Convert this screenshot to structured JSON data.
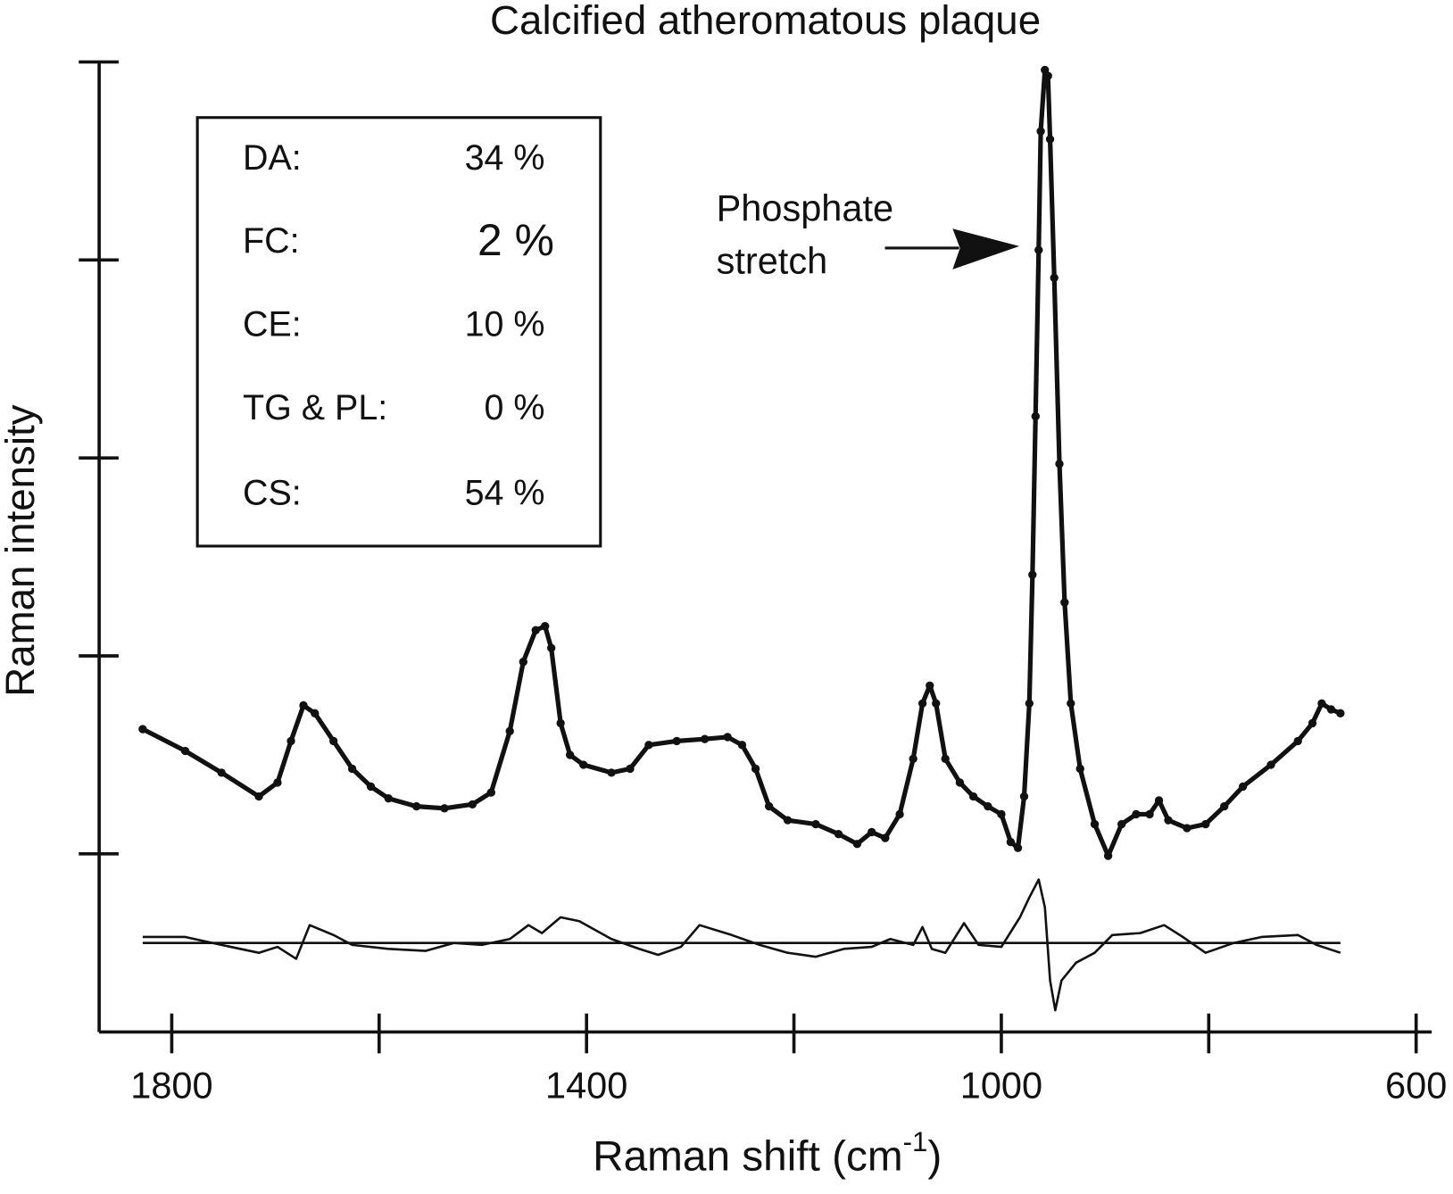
{
  "chart_data": {
    "type": "line",
    "title": "Calcified atheromatous plaque",
    "xlabel": {
      "text": "Raman shift (cm",
      "sup": "-1",
      "end": ")"
    },
    "ylabel": "Raman intensity",
    "xlim": [
      1870,
      585
    ],
    "xticks": [
      1800,
      1400,
      1000,
      600
    ],
    "xminor_ticks": [
      1600,
      1200,
      800
    ],
    "ylim": [
      -0.9,
      4
    ],
    "yticks": [
      0,
      1,
      2,
      3,
      4
    ],
    "ytick_labels": false,
    "grid": false,
    "composition": [
      {
        "label": "DA:",
        "value": "34 %"
      },
      {
        "label": "FC:",
        "value": "2 %"
      },
      {
        "label": "CE:",
        "value": "10 %"
      },
      {
        "label": "TG & PL:",
        "value": "0 %"
      },
      {
        "label": "CS:",
        "value": "54 %"
      }
    ],
    "annotation": [
      "Phosphate",
      "stretch"
    ],
    "series": [
      {
        "color": "#111111",
        "markers": true,
        "x": [
          1828,
          1787,
          1752,
          1716,
          1698,
          1685,
          1673,
          1662,
          1644,
          1626,
          1608,
          1591,
          1564,
          1537,
          1510,
          1492,
          1474,
          1461,
          1449,
          1440,
          1434,
          1425,
          1416,
          1403,
          1376,
          1358,
          1340,
          1313,
          1286,
          1264,
          1250,
          1237,
          1224,
          1206,
          1179,
          1157,
          1139,
          1125,
          1112,
          1098,
          1085,
          1076,
          1069,
          1063,
          1054,
          1040,
          1027,
          1013,
          1000,
          991,
          984,
          978,
          973,
          970,
          967,
          964,
          962,
          958,
          955,
          953,
          949,
          944,
          939,
          933,
          924,
          910,
          897,
          884,
          870,
          857,
          848,
          839,
          821,
          803,
          785,
          767,
          740,
          714,
          700,
          691,
          682,
          673
        ],
        "values": [
          0.63,
          0.52,
          0.41,
          0.29,
          0.36,
          0.57,
          0.75,
          0.71,
          0.57,
          0.43,
          0.34,
          0.28,
          0.24,
          0.23,
          0.25,
          0.31,
          0.62,
          0.97,
          1.13,
          1.15,
          1.04,
          0.66,
          0.5,
          0.45,
          0.41,
          0.43,
          0.55,
          0.57,
          0.58,
          0.59,
          0.55,
          0.43,
          0.24,
          0.17,
          0.15,
          0.1,
          0.05,
          0.11,
          0.08,
          0.2,
          0.48,
          0.76,
          0.85,
          0.76,
          0.48,
          0.36,
          0.29,
          0.24,
          0.2,
          0.06,
          0.03,
          0.29,
          0.76,
          1.41,
          2.21,
          3.05,
          3.65,
          3.96,
          3.93,
          3.61,
          2.91,
          1.97,
          1.27,
          0.76,
          0.43,
          0.15,
          -0.01,
          0.15,
          0.2,
          0.2,
          0.27,
          0.17,
          0.13,
          0.15,
          0.24,
          0.34,
          0.45,
          0.57,
          0.66,
          0.76,
          0.73,
          0.71
        ]
      },
      {
        "color": "#111111",
        "markers": false,
        "x": [
          1828,
          1787,
          1752,
          1716,
          1698,
          1680,
          1667,
          1644,
          1626,
          1591,
          1555,
          1528,
          1501,
          1474,
          1456,
          1443,
          1425,
          1407,
          1376,
          1349,
          1331,
          1309,
          1291,
          1260,
          1233,
          1206,
          1179,
          1152,
          1125,
          1107,
          1085,
          1076,
          1067,
          1054,
          1036,
          1022,
          1000,
          982,
          973,
          964,
          958,
          953,
          948,
          942,
          928,
          910,
          893,
          866,
          843,
          825,
          803,
          776,
          749,
          714,
          696,
          673
        ],
        "values": [
          -0.42,
          -0.42,
          -0.46,
          -0.5,
          -0.47,
          -0.53,
          -0.36,
          -0.41,
          -0.46,
          -0.48,
          -0.49,
          -0.45,
          -0.46,
          -0.43,
          -0.36,
          -0.4,
          -0.32,
          -0.34,
          -0.43,
          -0.48,
          -0.51,
          -0.47,
          -0.36,
          -0.41,
          -0.46,
          -0.5,
          -0.52,
          -0.48,
          -0.47,
          -0.43,
          -0.46,
          -0.37,
          -0.48,
          -0.5,
          -0.35,
          -0.46,
          -0.47,
          -0.32,
          -0.22,
          -0.13,
          -0.27,
          -0.64,
          -0.79,
          -0.64,
          -0.55,
          -0.5,
          -0.41,
          -0.4,
          -0.36,
          -0.42,
          -0.5,
          -0.45,
          -0.42,
          -0.41,
          -0.46,
          -0.5
        ]
      },
      {
        "color": "#111111",
        "markers": false,
        "x": [
          1828,
          673
        ],
        "values": [
          -0.45,
          -0.45
        ]
      }
    ]
  }
}
